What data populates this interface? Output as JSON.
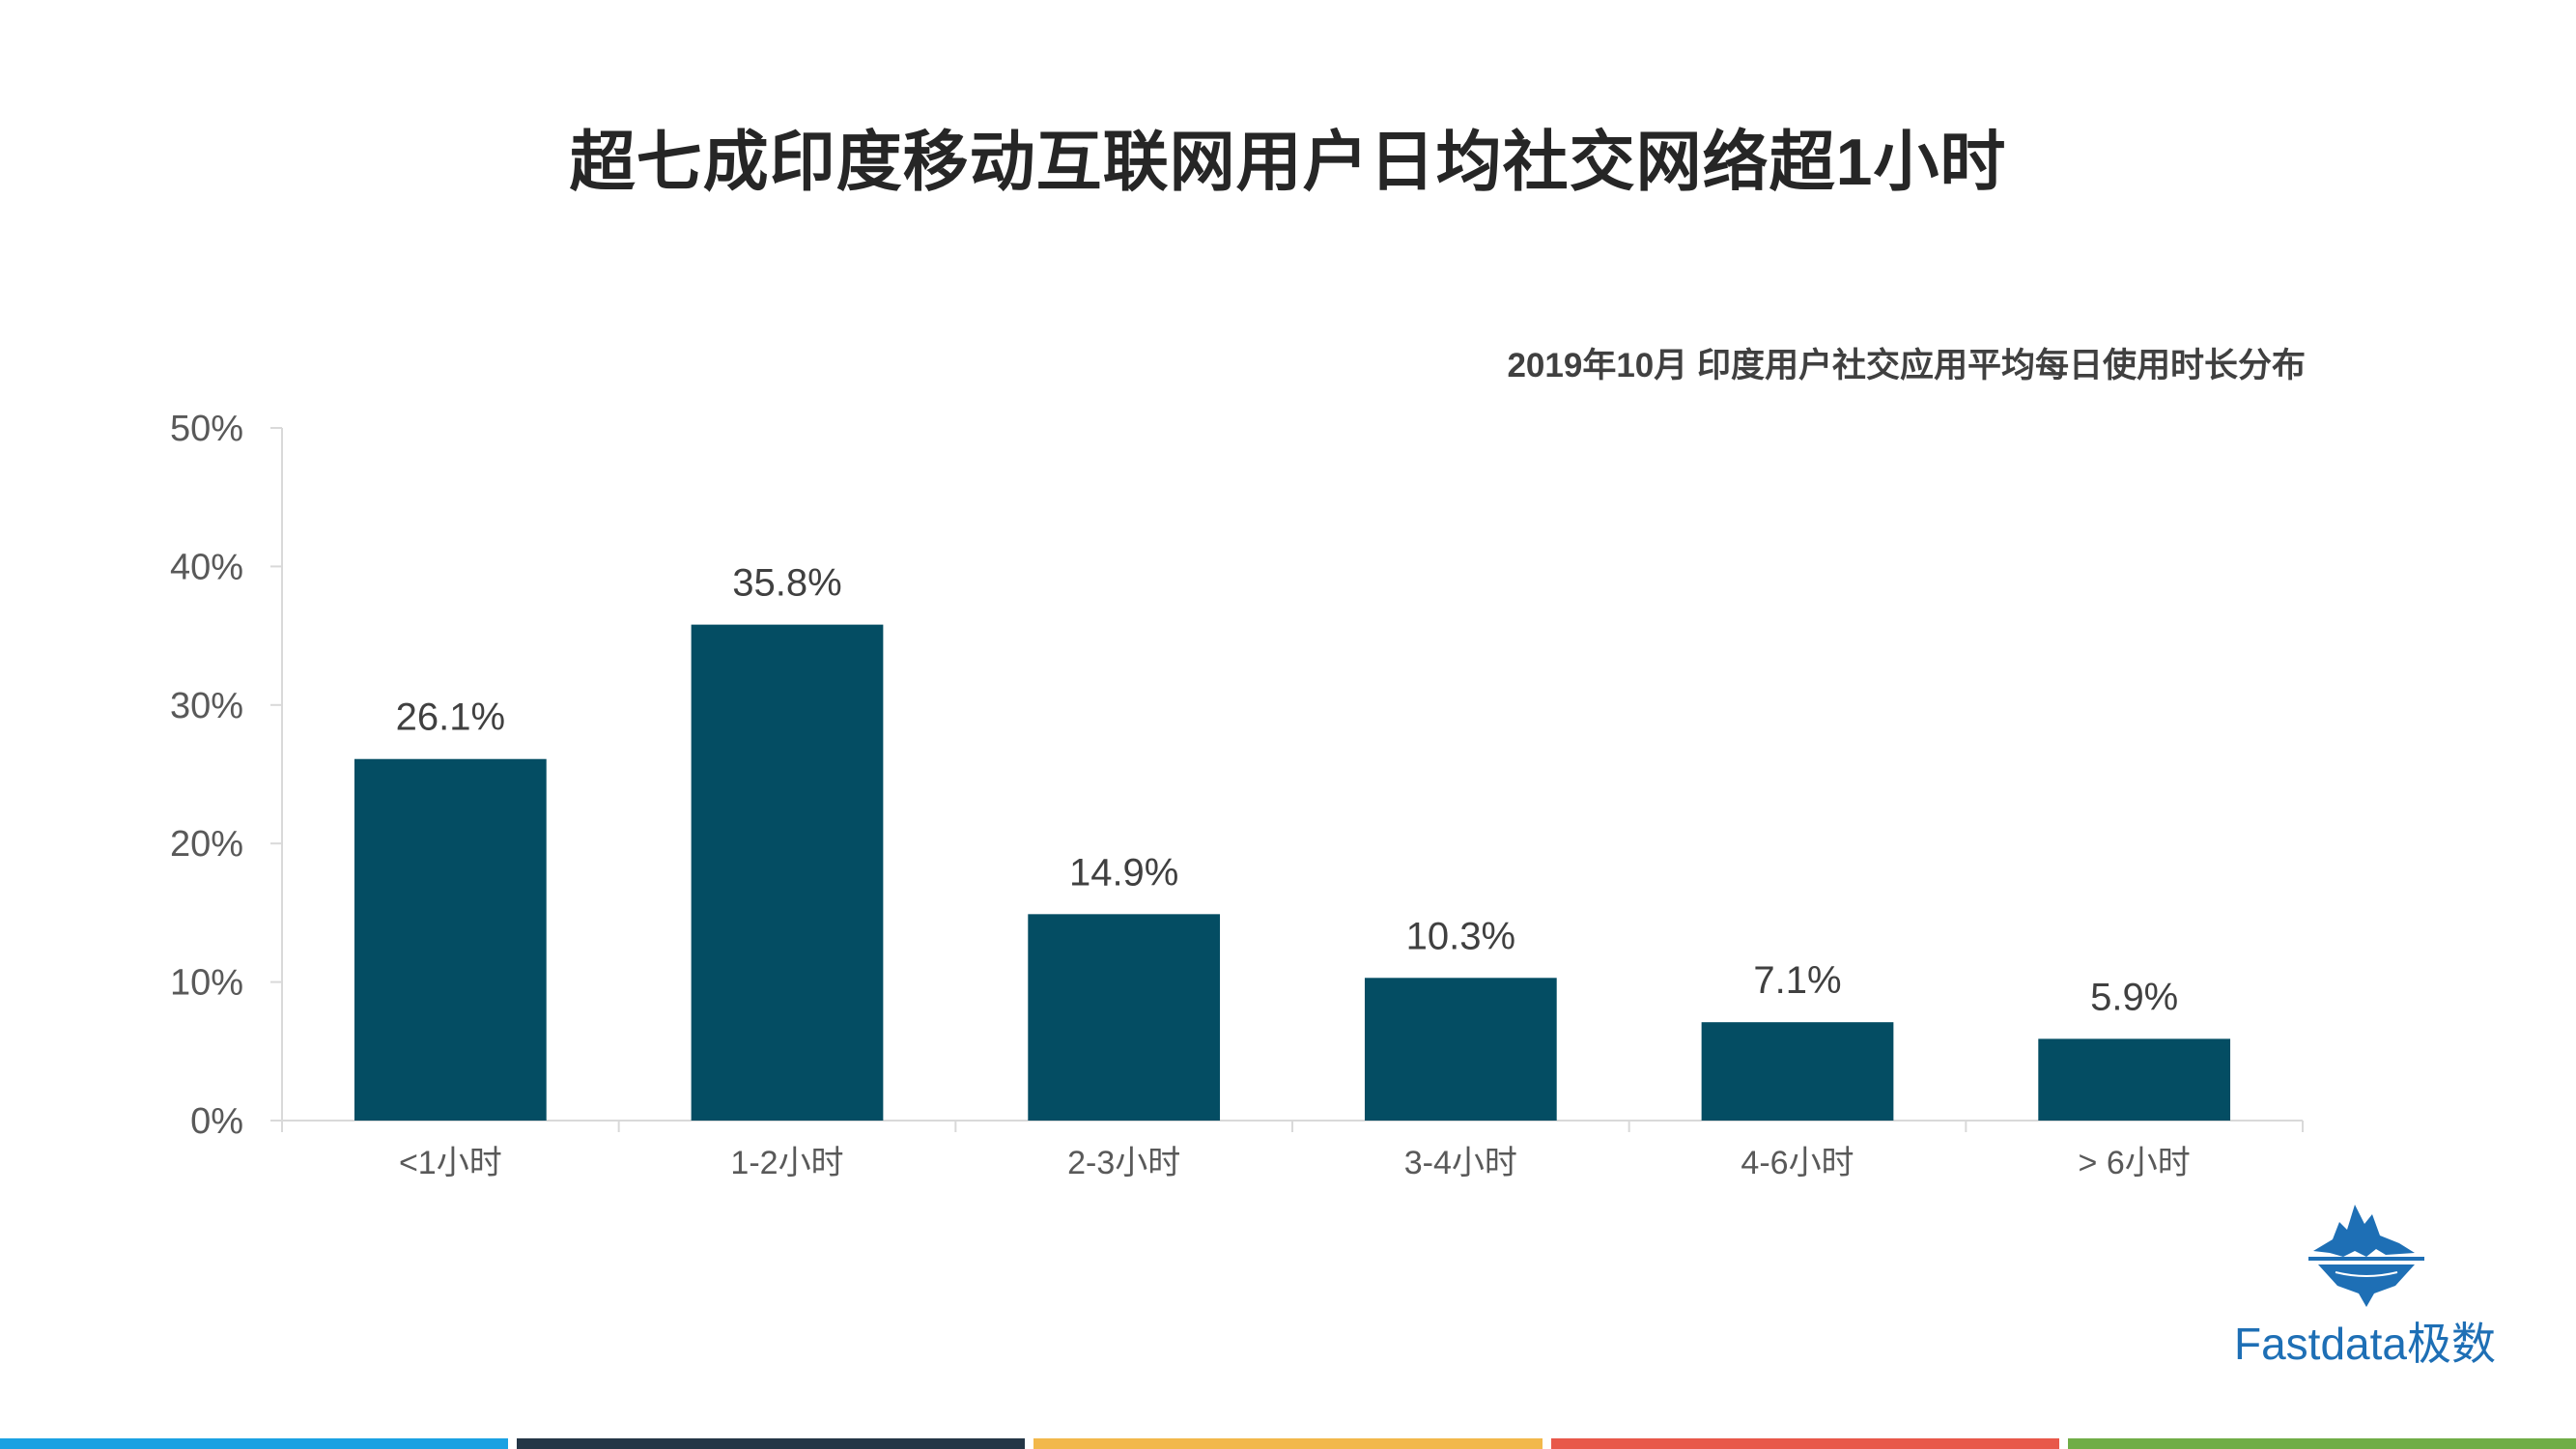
{
  "title": "超七成印度移动互联网用户日均社交网络超1小时",
  "subtitle": "2019年10月 印度用户社交应用平均每日使用时长分布",
  "brand": {
    "name": "Fastdata极数",
    "logo_icon": "iceberg-logo-icon",
    "color": "#1e6fb5"
  },
  "bottom_bar_colors": [
    "#1ba1e2",
    "#243646",
    "#f2b84b",
    "#e8584a",
    "#70ad47"
  ],
  "chart_data": {
    "type": "bar",
    "categories": [
      "<1小时",
      "1-2小时",
      "2-3小时",
      "3-4小时",
      "4-6小时",
      "> 6小时"
    ],
    "values": [
      26.1,
      35.8,
      14.9,
      10.3,
      7.1,
      5.9
    ],
    "value_labels": [
      "26.1%",
      "35.8%",
      "14.9%",
      "10.3%",
      "7.1%",
      "5.9%"
    ],
    "yticks": [
      0,
      10,
      20,
      30,
      40,
      50
    ],
    "ytick_labels": [
      "0%",
      "10%",
      "20%",
      "30%",
      "40%",
      "50%"
    ],
    "ylim": [
      0,
      50
    ],
    "bar_color": "#044d63",
    "grid": false,
    "legend": "none"
  }
}
